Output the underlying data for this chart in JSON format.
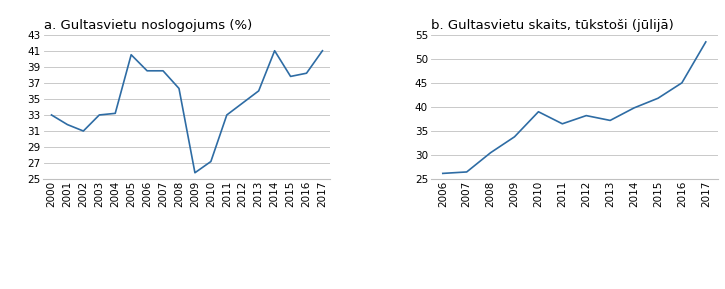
{
  "chart_a": {
    "title": "a. Gultasvietu noslogojums (%)",
    "years": [
      2000,
      2001,
      2002,
      2003,
      2004,
      2005,
      2006,
      2007,
      2008,
      2009,
      2010,
      2011,
      2012,
      2013,
      2014,
      2015,
      2016,
      2017
    ],
    "values": [
      33.0,
      31.8,
      31.0,
      33.0,
      33.2,
      40.5,
      38.5,
      38.5,
      36.3,
      25.8,
      27.2,
      33.0,
      34.5,
      36.0,
      41.0,
      37.8,
      38.2,
      41.0
    ],
    "ylim": [
      25,
      43
    ],
    "yticks": [
      25,
      27,
      29,
      31,
      33,
      35,
      37,
      39,
      41,
      43
    ],
    "line_color": "#2e6ca4"
  },
  "chart_b": {
    "title": "b. Gultasvietu skaits, tūkstoši (jūlijā)",
    "years": [
      2006,
      2007,
      2008,
      2009,
      2010,
      2011,
      2012,
      2013,
      2014,
      2015,
      2016,
      2017
    ],
    "values": [
      26.2,
      26.5,
      30.5,
      33.8,
      39.0,
      36.5,
      38.2,
      37.2,
      39.8,
      41.8,
      45.0,
      53.5
    ],
    "ylim": [
      25,
      55
    ],
    "yticks": [
      25,
      30,
      35,
      40,
      45,
      50,
      55
    ],
    "line_color": "#2e6ca4"
  },
  "background_color": "#ffffff",
  "grid_color": "#c0c0c0",
  "title_fontsize": 9.5,
  "tick_fontsize": 7.5
}
